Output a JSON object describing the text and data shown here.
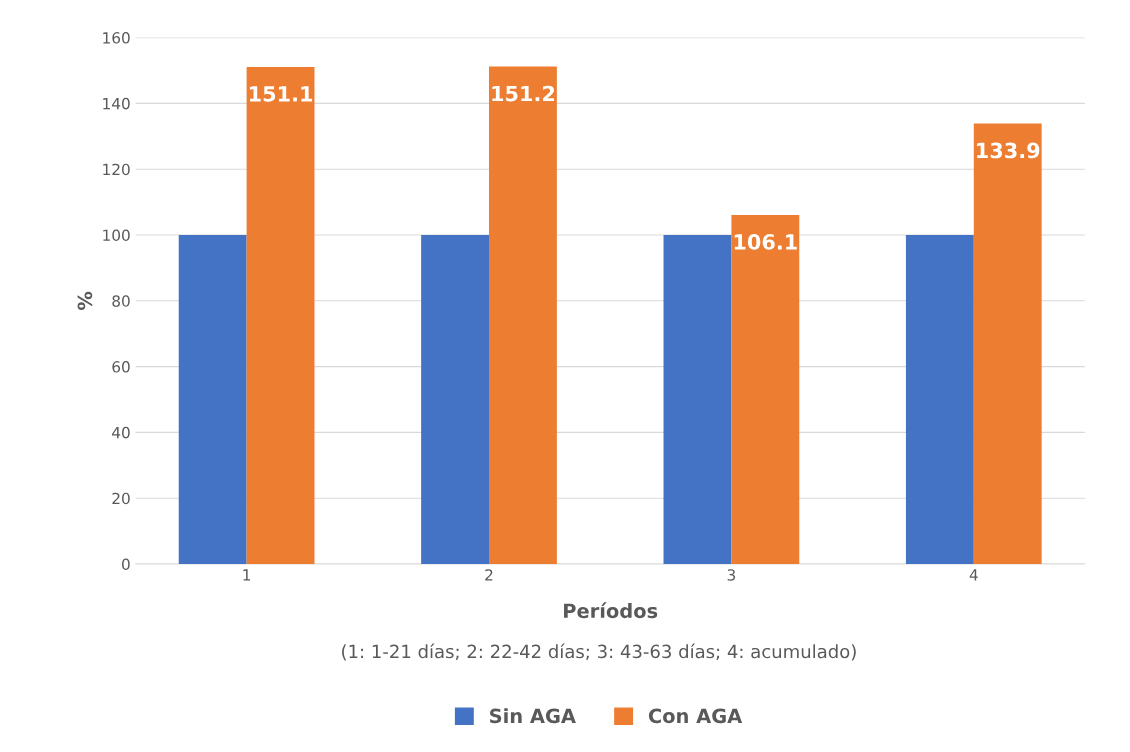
{
  "chart_data": {
    "type": "bar",
    "categories": [
      "1",
      "2",
      "3",
      "4"
    ],
    "series": [
      {
        "name": "Sin AGA",
        "color": "#4472c4",
        "values": [
          100,
          100,
          100,
          100
        ]
      },
      {
        "name": "Con AGA",
        "color": "#ed7d31",
        "values": [
          151.1,
          151.2,
          106.1,
          133.9
        ],
        "value_labels": [
          "151.1",
          "151.2",
          "106.1",
          "133.9"
        ]
      }
    ],
    "ylabel": "%",
    "xlabel": "Períodos",
    "annotations": [
      "(1: 1-21 días; 2: 22-42 días; 3: 43-63 días; 4: acumulado)"
    ],
    "ylim": [
      0,
      160
    ],
    "yticks": [
      0,
      20,
      40,
      60,
      80,
      100,
      120,
      140,
      160
    ],
    "grid": "y",
    "legend": "bottom"
  }
}
